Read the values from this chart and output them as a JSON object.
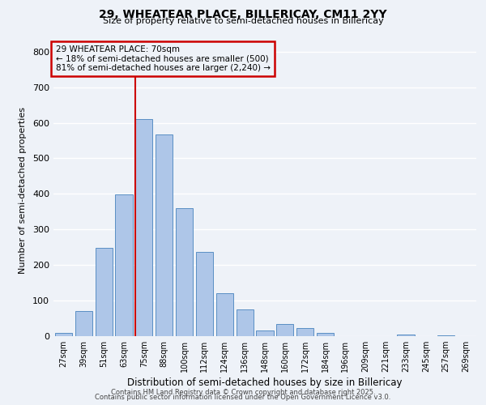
{
  "title1": "29, WHEATEAR PLACE, BILLERICAY, CM11 2YY",
  "title2": "Size of property relative to semi-detached houses in Billericay",
  "xlabel": "Distribution of semi-detached houses by size in Billericay",
  "ylabel": "Number of semi-detached properties",
  "bar_labels": [
    "27sqm",
    "39sqm",
    "51sqm",
    "63sqm",
    "75sqm",
    "88sqm",
    "100sqm",
    "112sqm",
    "124sqm",
    "136sqm",
    "148sqm",
    "160sqm",
    "172sqm",
    "184sqm",
    "196sqm",
    "209sqm",
    "221sqm",
    "233sqm",
    "245sqm",
    "257sqm",
    "269sqm"
  ],
  "bar_values": [
    8,
    70,
    248,
    398,
    610,
    568,
    360,
    238,
    120,
    75,
    15,
    35,
    23,
    8,
    0,
    0,
    0,
    5,
    0,
    3,
    0
  ],
  "bar_color": "#aec6e8",
  "bar_edge_color": "#5a8fc4",
  "vline_color": "#cc0000",
  "annotation_title": "29 WHEATEAR PLACE: 70sqm",
  "annotation_line1": "← 18% of semi-detached houses are smaller (500)",
  "annotation_line2": "81% of semi-detached houses are larger (2,240) →",
  "annotation_box_color": "#cc0000",
  "ylim": [
    0,
    820
  ],
  "yticks": [
    0,
    100,
    200,
    300,
    400,
    500,
    600,
    700,
    800
  ],
  "footnote1": "Contains HM Land Registry data © Crown copyright and database right 2025.",
  "footnote2": "Contains public sector information licensed under the Open Government Licence v3.0.",
  "background_color": "#eef2f8",
  "grid_color": "#ffffff"
}
